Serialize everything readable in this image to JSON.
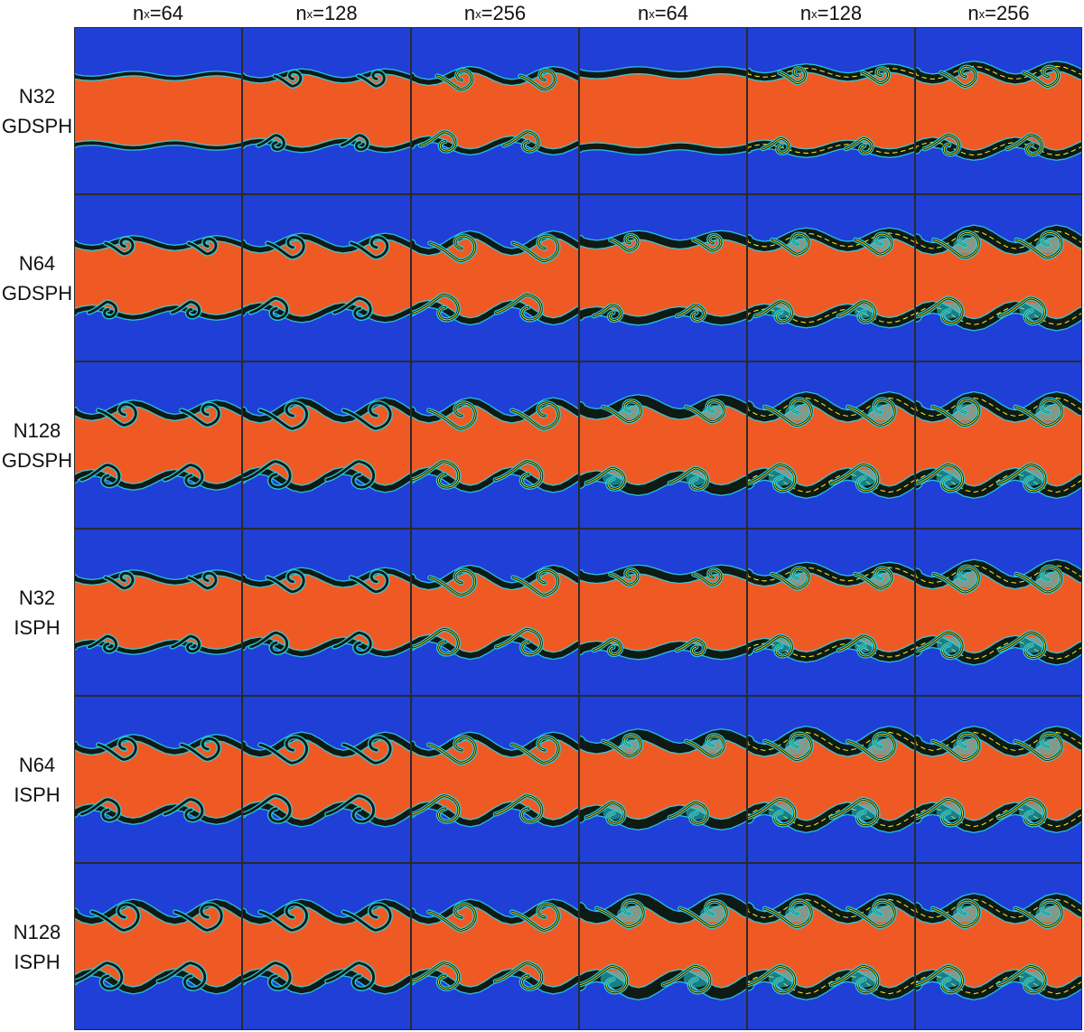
{
  "column_headers": [
    {
      "base": "n",
      "sub": "x",
      "eq": "=64"
    },
    {
      "base": "n",
      "sub": "x",
      "eq": "=128"
    },
    {
      "base": "n",
      "sub": "x",
      "eq": "=256"
    },
    {
      "base": "n",
      "sub": "x",
      "eq": "=64"
    },
    {
      "base": "n",
      "sub": "x",
      "eq": "=128"
    },
    {
      "base": "n",
      "sub": "x",
      "eq": "=256"
    }
  ],
  "row_labels": [
    {
      "line1": "N32",
      "line2": "GDSPH"
    },
    {
      "line1": "N64",
      "line2": "GDSPH"
    },
    {
      "line1": "N128",
      "line2": "GDSPH"
    },
    {
      "line1": "N32",
      "line2": "ISPH"
    },
    {
      "line1": "N64",
      "line2": "ISPH"
    },
    {
      "line1": "N128",
      "line2": "ISPH"
    }
  ],
  "colors": {
    "outer_fluid": "#1f3fd6",
    "inner_fluid": "#ef5a24",
    "interface_dark": "#0e1a14",
    "interface_cyan": "#2ad0e0",
    "interface_yellow": "#f2e61c"
  }
}
